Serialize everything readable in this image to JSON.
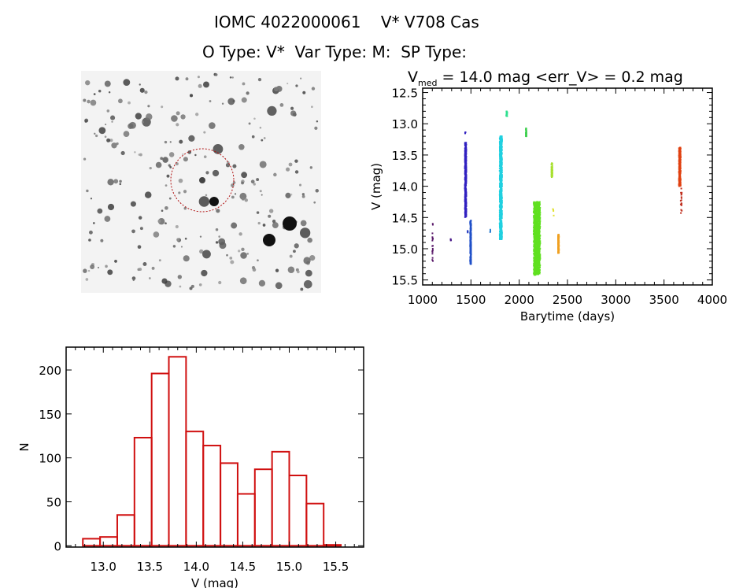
{
  "header": {
    "title": "IOMC 4022000061    V* V708 Cas",
    "subtitle": "O Type: V*  Var Type: M:  SP Type:"
  },
  "chart_data": [
    {
      "type": "image",
      "content": "star field finder chart with red dashed circle around target"
    },
    {
      "type": "scatter",
      "title_parts": {
        "v": "V",
        "sub": "med",
        "rest": " = 14.0 mag <err_V> = 0.2 mag"
      },
      "xlabel": "Barytime (days)",
      "ylabel": "V (mag)",
      "xlim": [
        1000,
        4000
      ],
      "ylim": [
        15.58,
        12.43
      ],
      "y_reversed": true,
      "xticks": [
        1000,
        1500,
        2000,
        2500,
        3000,
        3500,
        4000
      ],
      "yticks": [
        "12.5",
        "13.0",
        "13.5",
        "14.0",
        "14.5",
        "15.0",
        "15.5"
      ],
      "clusters": [
        {
          "x": [
            1100,
            1106
          ],
          "v": [
            14.6,
            15.2
          ],
          "color": "#5a1a6a",
          "density": "sparse"
        },
        {
          "x": [
            1290,
            1296
          ],
          "v": [
            14.84,
            14.87
          ],
          "color": "#4a1a8a",
          "density": "sparse"
        },
        {
          "x": [
            1438,
            1452
          ],
          "v": [
            13.3,
            14.5
          ],
          "color": "#3020c0",
          "density": "dense"
        },
        {
          "x": [
            1440,
            1444
          ],
          "v": [
            13.13,
            13.16
          ],
          "color": "#3020c0",
          "density": "sparse"
        },
        {
          "x": [
            1465,
            1472
          ],
          "v": [
            14.7,
            14.74
          ],
          "color": "#2a40c0",
          "density": "sparse"
        },
        {
          "x": [
            1492,
            1502
          ],
          "v": [
            14.55,
            15.25
          ],
          "color": "#2050c8",
          "density": "dense"
        },
        {
          "x": [
            1696,
            1706
          ],
          "v": [
            14.64,
            14.74
          ],
          "color": "#3080d0",
          "density": "sparse"
        },
        {
          "x": [
            1798,
            1822
          ],
          "v": [
            13.2,
            14.85
          ],
          "color": "#20d0e0",
          "density": "dense"
        },
        {
          "x": [
            1866,
            1876
          ],
          "v": [
            12.8,
            12.88
          ],
          "color": "#30e090",
          "density": "dense"
        },
        {
          "x": [
            2068,
            2076
          ],
          "v": [
            13.07,
            13.2
          ],
          "color": "#40d050",
          "density": "dense"
        },
        {
          "x": [
            2150,
            2217
          ],
          "v": [
            14.25,
            15.42
          ],
          "color": "#60e020",
          "density": "dense"
        },
        {
          "x": [
            2334,
            2344
          ],
          "v": [
            13.63,
            13.86
          ],
          "color": "#a8e030",
          "density": "dense"
        },
        {
          "x": [
            2348,
            2358
          ],
          "v": [
            14.36,
            14.48
          ],
          "color": "#e0e030",
          "density": "sparse"
        },
        {
          "x": [
            2402,
            2412
          ],
          "v": [
            14.77,
            15.07
          ],
          "color": "#f0a020",
          "density": "dense"
        },
        {
          "x": [
            3655,
            3672
          ],
          "v": [
            13.38,
            14.0
          ],
          "color": "#e04010",
          "density": "dense"
        },
        {
          "x": [
            3672,
            3684
          ],
          "v": [
            14.0,
            14.47
          ],
          "color": "#c03020",
          "density": "sparse"
        }
      ]
    },
    {
      "type": "bar",
      "subtype": "histogram",
      "xlabel": "V (mag)",
      "ylabel": "N",
      "xlim": [
        12.6,
        15.8
      ],
      "ylim": [
        -1.5,
        226
      ],
      "xticks": [
        "13.0",
        "13.5",
        "14.0",
        "14.5",
        "15.0",
        "15.5"
      ],
      "yticks": [
        0,
        50,
        100,
        150,
        200
      ],
      "bin_start": 12.78,
      "bin_width": 0.185,
      "values": [
        8,
        10,
        35,
        123,
        196,
        215,
        130,
        114,
        94,
        59,
        87,
        107,
        80,
        48,
        1
      ],
      "color": "#d01010"
    }
  ]
}
